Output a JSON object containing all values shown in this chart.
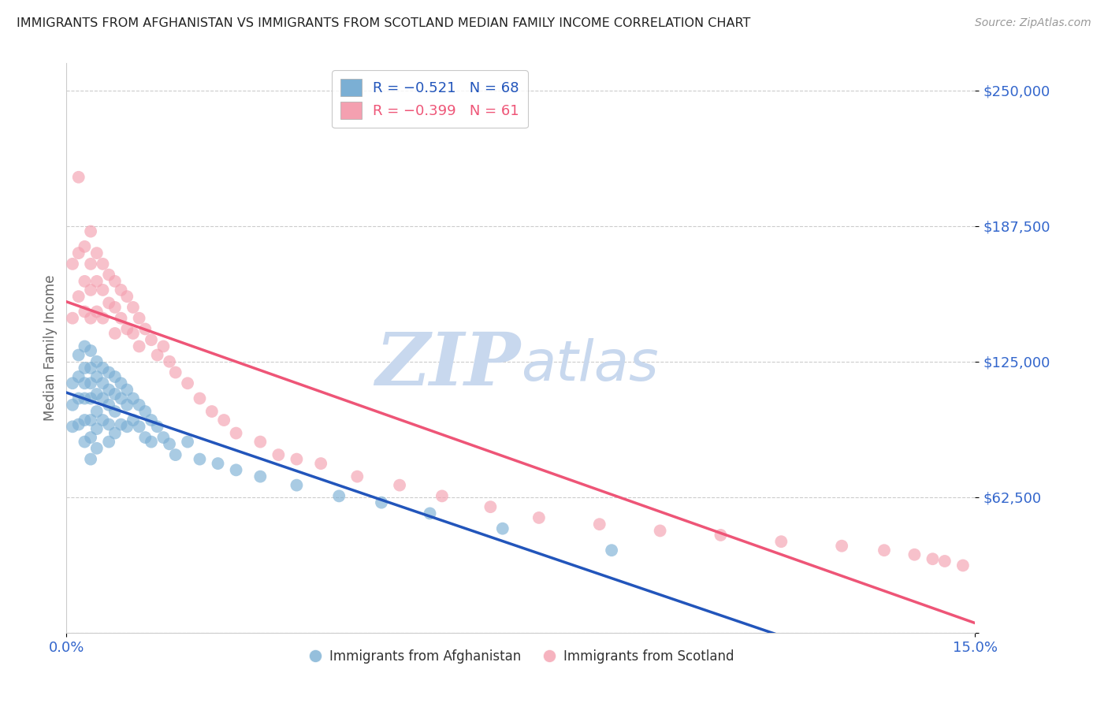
{
  "title": "IMMIGRANTS FROM AFGHANISTAN VS IMMIGRANTS FROM SCOTLAND MEDIAN FAMILY INCOME CORRELATION CHART",
  "source": "Source: ZipAtlas.com",
  "ylabel": "Median Family Income",
  "xlim": [
    0,
    0.15
  ],
  "ylim": [
    0,
    262500
  ],
  "yticks": [
    0,
    62500,
    125000,
    187500,
    250000
  ],
  "ytick_labels": [
    "",
    "$62,500",
    "$125,000",
    "$187,500",
    "$250,000"
  ],
  "xtick_labels": [
    "0.0%",
    "15.0%"
  ],
  "xtick_vals": [
    0.0,
    0.15
  ],
  "legend_blue_R": "R = −0.521",
  "legend_blue_N": "N = 68",
  "legend_pink_R": "R = −0.399",
  "legend_pink_N": "N = 61",
  "blue_scatter_color": "#7BAFD4",
  "pink_scatter_color": "#F4A0B0",
  "blue_line_color": "#2255BB",
  "pink_line_color": "#EE5577",
  "watermark_zip": "ZIP",
  "watermark_atlas": "atlas",
  "watermark_color": "#C8D8EE",
  "title_color": "#222222",
  "axis_value_color": "#3366CC",
  "ylabel_color": "#666666",
  "grid_color": "#CCCCCC",
  "afghanistan_x": [
    0.001,
    0.001,
    0.001,
    0.002,
    0.002,
    0.002,
    0.002,
    0.003,
    0.003,
    0.003,
    0.003,
    0.003,
    0.003,
    0.004,
    0.004,
    0.004,
    0.004,
    0.004,
    0.004,
    0.004,
    0.005,
    0.005,
    0.005,
    0.005,
    0.005,
    0.005,
    0.006,
    0.006,
    0.006,
    0.006,
    0.007,
    0.007,
    0.007,
    0.007,
    0.007,
    0.008,
    0.008,
    0.008,
    0.008,
    0.009,
    0.009,
    0.009,
    0.01,
    0.01,
    0.01,
    0.011,
    0.011,
    0.012,
    0.012,
    0.013,
    0.013,
    0.014,
    0.014,
    0.015,
    0.016,
    0.017,
    0.018,
    0.02,
    0.022,
    0.025,
    0.028,
    0.032,
    0.038,
    0.045,
    0.052,
    0.06,
    0.072,
    0.09
  ],
  "afghanistan_y": [
    115000,
    105000,
    95000,
    128000,
    118000,
    108000,
    96000,
    132000,
    122000,
    115000,
    108000,
    98000,
    88000,
    130000,
    122000,
    115000,
    108000,
    98000,
    90000,
    80000,
    125000,
    118000,
    110000,
    102000,
    94000,
    85000,
    122000,
    115000,
    108000,
    98000,
    120000,
    112000,
    105000,
    96000,
    88000,
    118000,
    110000,
    102000,
    92000,
    115000,
    108000,
    96000,
    112000,
    105000,
    95000,
    108000,
    98000,
    105000,
    95000,
    102000,
    90000,
    98000,
    88000,
    95000,
    90000,
    87000,
    82000,
    88000,
    80000,
    78000,
    75000,
    72000,
    68000,
    63000,
    60000,
    55000,
    48000,
    38000
  ],
  "scotland_x": [
    0.001,
    0.001,
    0.002,
    0.002,
    0.002,
    0.003,
    0.003,
    0.003,
    0.004,
    0.004,
    0.004,
    0.004,
    0.005,
    0.005,
    0.005,
    0.006,
    0.006,
    0.006,
    0.007,
    0.007,
    0.008,
    0.008,
    0.008,
    0.009,
    0.009,
    0.01,
    0.01,
    0.011,
    0.011,
    0.012,
    0.012,
    0.013,
    0.014,
    0.015,
    0.016,
    0.017,
    0.018,
    0.02,
    0.022,
    0.024,
    0.026,
    0.028,
    0.032,
    0.035,
    0.038,
    0.042,
    0.048,
    0.055,
    0.062,
    0.07,
    0.078,
    0.088,
    0.098,
    0.108,
    0.118,
    0.128,
    0.135,
    0.14,
    0.143,
    0.145,
    0.148
  ],
  "scotland_y": [
    170000,
    145000,
    210000,
    175000,
    155000,
    178000,
    162000,
    148000,
    185000,
    170000,
    158000,
    145000,
    175000,
    162000,
    148000,
    170000,
    158000,
    145000,
    165000,
    152000,
    162000,
    150000,
    138000,
    158000,
    145000,
    155000,
    140000,
    150000,
    138000,
    145000,
    132000,
    140000,
    135000,
    128000,
    132000,
    125000,
    120000,
    115000,
    108000,
    102000,
    98000,
    92000,
    88000,
    82000,
    80000,
    78000,
    72000,
    68000,
    63000,
    58000,
    53000,
    50000,
    47000,
    45000,
    42000,
    40000,
    38000,
    36000,
    34000,
    33000,
    31000
  ]
}
